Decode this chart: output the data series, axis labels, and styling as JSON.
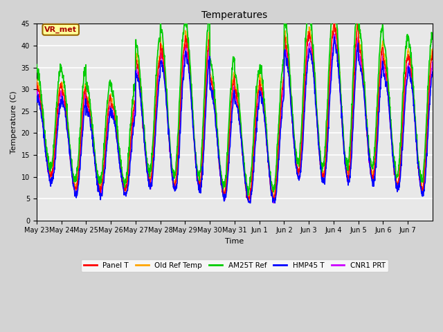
{
  "title": "Temperatures",
  "xlabel": "Time",
  "ylabel": "Temperature (C)",
  "ylim": [
    0,
    45
  ],
  "yticks": [
    0,
    5,
    10,
    15,
    20,
    25,
    30,
    35,
    40,
    45
  ],
  "series_colors": {
    "Panel T": "#ff0000",
    "Old Ref Temp": "#ffa500",
    "AM25T Ref": "#00cc00",
    "HMP45 T": "#0000ff",
    "CNR1 PRT": "#cc00ff"
  },
  "legend_labels": [
    "Panel T",
    "Old Ref Temp",
    "AM25T Ref",
    "HMP45 T",
    "CNR1 PRT"
  ],
  "annotation_text": "VR_met",
  "annotation_color": "#aa0000",
  "annotation_bg": "#ffff99",
  "annotation_edge": "#996600",
  "n_days": 16,
  "x_tick_labels": [
    "May 23",
    "May 24",
    "May 25",
    "May 26",
    "May 27",
    "May 28",
    "May 29",
    "May 30",
    "May 31",
    "Jun 1",
    "Jun 2",
    "Jun 3",
    "Jun 4",
    "Jun 5",
    "Jun 6",
    "Jun 7"
  ],
  "day_peaks": [
    31,
    30.5,
    28,
    27,
    37,
    40,
    42,
    33,
    30,
    32,
    42,
    43,
    45,
    40,
    37,
    38
  ],
  "day_mins": [
    10,
    7,
    7,
    7,
    9,
    8,
    8,
    6,
    5,
    5,
    11,
    10,
    10,
    10,
    8,
    7
  ],
  "fig_facecolor": "#d3d3d3",
  "ax_facecolor": "#e8e8e8",
  "grid_color": "#ffffff"
}
